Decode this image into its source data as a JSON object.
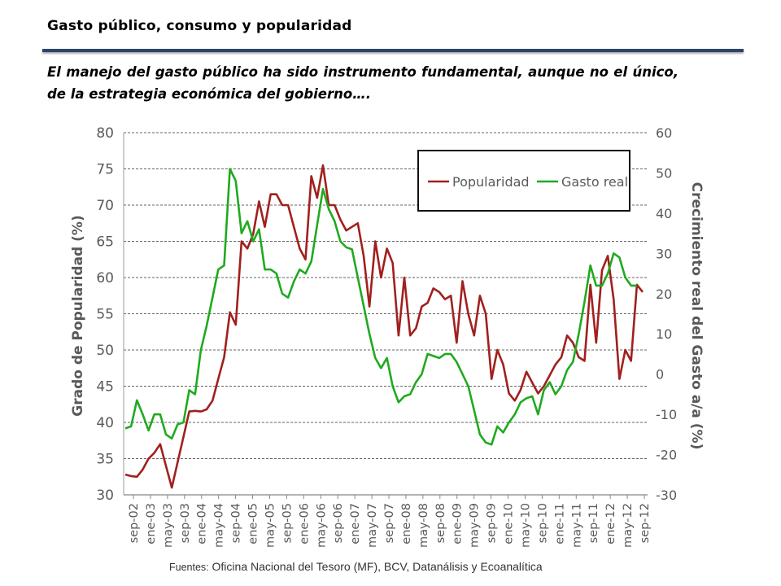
{
  "header": {
    "title": "Gasto público, consumo y popularidad",
    "subtitle": "El manejo del gasto público ha sido instrumento fundamental, aunque no el único, de la estrategia económica del gobierno…."
  },
  "source": {
    "label": "Fuentes:",
    "text": "Oficina Nacional del Tesoro (MF), BCV, Datanálisis y Ecoanalítica"
  },
  "chart_data": {
    "type": "line",
    "xlabel": "",
    "ylabel": "Grado de Popularidad (%)",
    "y2label": "Crecimiento real del Gasto a/a (%)",
    "ylim": [
      30,
      80
    ],
    "y2lim": [
      -30,
      60
    ],
    "yticks": [
      30,
      35,
      40,
      45,
      50,
      55,
      60,
      65,
      70,
      75,
      80
    ],
    "y2ticks": [
      -30,
      -20,
      -10,
      0,
      10,
      20,
      30,
      40,
      50,
      60
    ],
    "grid": "horizontal dashed",
    "legend_position": "top-right",
    "x_ticks": [
      "sep-02",
      "ene-03",
      "may-03",
      "sep-03",
      "ene-04",
      "may-04",
      "sep-04",
      "ene-05",
      "may-05",
      "sep-05",
      "ene-06",
      "may-06",
      "sep-06",
      "ene-07",
      "may-07",
      "sep-07",
      "ene-08",
      "may-08",
      "sep-08",
      "ene-09",
      "may-09",
      "sep-09",
      "ene-10",
      "may-10",
      "sep-10",
      "ene-11",
      "may-11",
      "sep-11",
      "ene-12",
      "may-12",
      "sep-12"
    ],
    "series": [
      {
        "name": "Popularidad",
        "axis": "left",
        "color": "#a0201e",
        "points": [
          [
            0,
            32.8
          ],
          [
            1,
            32.6
          ],
          [
            2,
            32.5
          ],
          [
            3,
            33.5
          ],
          [
            4,
            35
          ],
          [
            5,
            35.8
          ],
          [
            6,
            37
          ],
          [
            7,
            34
          ],
          [
            8,
            31
          ],
          [
            9,
            34.5
          ],
          [
            10,
            38
          ],
          [
            11,
            41.5
          ],
          [
            12,
            41.6
          ],
          [
            13,
            41.5
          ],
          [
            14,
            41.8
          ],
          [
            15,
            43
          ],
          [
            16,
            46
          ],
          [
            17,
            49
          ],
          [
            18,
            55.2
          ],
          [
            19,
            53.5
          ],
          [
            20,
            65
          ],
          [
            21,
            64
          ],
          [
            22,
            66
          ],
          [
            23,
            70.5
          ],
          [
            24,
            67
          ],
          [
            25,
            71.5
          ],
          [
            26,
            71.5
          ],
          [
            27,
            70
          ],
          [
            28,
            70
          ],
          [
            29,
            67
          ],
          [
            30,
            64
          ],
          [
            31,
            62.5
          ],
          [
            32,
            74
          ],
          [
            33,
            71
          ],
          [
            34,
            75.5
          ],
          [
            35,
            70
          ],
          [
            36,
            70
          ],
          [
            37,
            68
          ],
          [
            38,
            66.5
          ],
          [
            39,
            67
          ],
          [
            40,
            67.5
          ],
          [
            41,
            63
          ],
          [
            42,
            56
          ],
          [
            43,
            65
          ],
          [
            44,
            60
          ],
          [
            45,
            64
          ],
          [
            46,
            62
          ],
          [
            47,
            52
          ],
          [
            48,
            60
          ],
          [
            49,
            52
          ],
          [
            50,
            53
          ],
          [
            51,
            56
          ],
          [
            52,
            56.5
          ],
          [
            53,
            58.5
          ],
          [
            54,
            58
          ],
          [
            55,
            57
          ],
          [
            56,
            57.5
          ],
          [
            57,
            51
          ],
          [
            58,
            59.5
          ],
          [
            59,
            55
          ],
          [
            60,
            52
          ],
          [
            61,
            57.5
          ],
          [
            62,
            55
          ],
          [
            63,
            46
          ],
          [
            64,
            50
          ],
          [
            65,
            48
          ],
          [
            66,
            44
          ],
          [
            67,
            43
          ],
          [
            68,
            44.5
          ],
          [
            69,
            47
          ],
          [
            70,
            45.5
          ],
          [
            71,
            44
          ],
          [
            72,
            45
          ],
          [
            73,
            46.5
          ],
          [
            74,
            48
          ],
          [
            75,
            49
          ],
          [
            76,
            52
          ],
          [
            77,
            51
          ],
          [
            78,
            49
          ],
          [
            79,
            48.5
          ],
          [
            80,
            59
          ],
          [
            81,
            51
          ],
          [
            82,
            61
          ],
          [
            83,
            63
          ],
          [
            84,
            57
          ],
          [
            85,
            46
          ],
          [
            86,
            50
          ],
          [
            87,
            48.5
          ],
          [
            88,
            59
          ],
          [
            89,
            58
          ]
        ]
      },
      {
        "name": "Gasto real",
        "axis": "right",
        "color": "#1faa1f",
        "points": [
          [
            0,
            -13.5
          ],
          [
            1,
            -13
          ],
          [
            2,
            -6.5
          ],
          [
            3,
            -10
          ],
          [
            4,
            -14
          ],
          [
            5,
            -10
          ],
          [
            6,
            -10
          ],
          [
            7,
            -15
          ],
          [
            8,
            -16
          ],
          [
            9,
            -12.5
          ],
          [
            10,
            -12
          ],
          [
            11,
            -4
          ],
          [
            12,
            -5
          ],
          [
            13,
            6
          ],
          [
            14,
            12
          ],
          [
            15,
            19
          ],
          [
            16,
            26
          ],
          [
            17,
            27
          ],
          [
            18,
            51
          ],
          [
            19,
            48
          ],
          [
            20,
            35
          ],
          [
            21,
            38
          ],
          [
            22,
            33
          ],
          [
            23,
            36
          ],
          [
            24,
            26
          ],
          [
            25,
            26
          ],
          [
            26,
            25
          ],
          [
            27,
            20
          ],
          [
            28,
            19
          ],
          [
            29,
            23
          ],
          [
            30,
            26
          ],
          [
            31,
            25
          ],
          [
            32,
            28
          ],
          [
            33,
            37
          ],
          [
            34,
            46
          ],
          [
            35,
            41
          ],
          [
            36,
            38
          ],
          [
            37,
            33
          ],
          [
            38,
            31.5
          ],
          [
            39,
            31
          ],
          [
            40,
            24
          ],
          [
            41,
            17
          ],
          [
            42,
            10
          ],
          [
            43,
            4
          ],
          [
            44,
            1.5
          ],
          [
            45,
            4
          ],
          [
            46,
            -3
          ],
          [
            47,
            -7
          ],
          [
            48,
            -5.5
          ],
          [
            49,
            -5
          ],
          [
            50,
            -2
          ],
          [
            51,
            0
          ],
          [
            52,
            5
          ],
          [
            53,
            4.5
          ],
          [
            54,
            4
          ],
          [
            55,
            5
          ],
          [
            56,
            5
          ],
          [
            57,
            3
          ],
          [
            58,
            0
          ],
          [
            59,
            -3
          ],
          [
            60,
            -9
          ],
          [
            61,
            -15
          ],
          [
            62,
            -17
          ],
          [
            63,
            -17.5
          ],
          [
            64,
            -13
          ],
          [
            65,
            -14.5
          ],
          [
            66,
            -12
          ],
          [
            67,
            -10
          ],
          [
            68,
            -7
          ],
          [
            69,
            -6
          ],
          [
            70,
            -5.5
          ],
          [
            71,
            -10
          ],
          [
            72,
            -4
          ],
          [
            73,
            -2
          ],
          [
            74,
            -5
          ],
          [
            75,
            -3
          ],
          [
            76,
            1
          ],
          [
            77,
            3
          ],
          [
            78,
            10
          ],
          [
            79,
            18
          ],
          [
            80,
            27
          ],
          [
            81,
            22
          ],
          [
            82,
            22
          ],
          [
            83,
            25
          ],
          [
            84,
            30
          ],
          [
            85,
            29
          ],
          [
            86,
            24
          ],
          [
            87,
            22
          ],
          [
            88,
            22
          ]
        ]
      }
    ]
  }
}
